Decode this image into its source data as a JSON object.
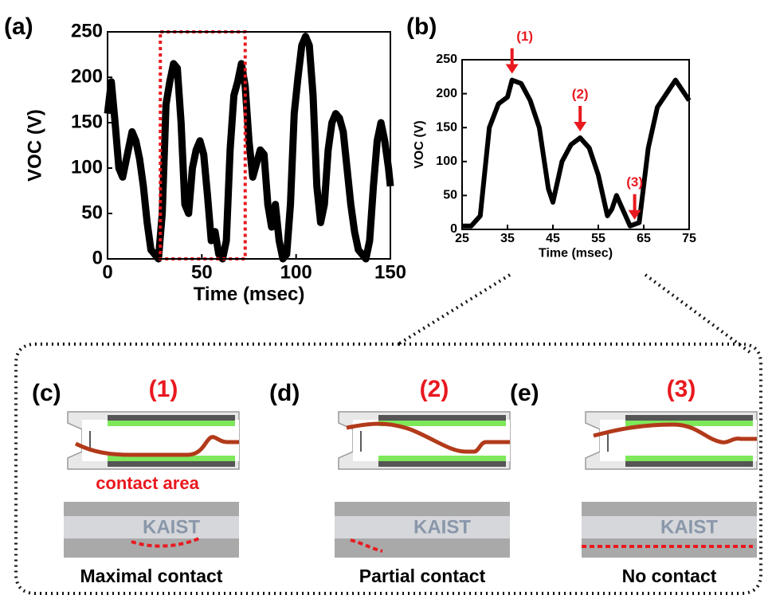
{
  "chart_data": [
    {
      "type": "line",
      "panel_label": "(a)",
      "xlabel": "Time (msec)",
      "ylabel": "VOC (V)",
      "xlim": [
        0,
        150
      ],
      "xticks": [
        0,
        50,
        100,
        150
      ],
      "ylim": [
        0,
        250
      ],
      "yticks": [
        0,
        50,
        100,
        150,
        200,
        250
      ],
      "highlight": [
        28,
        73
      ],
      "highlight_color": "#e8191f",
      "series": [
        {
          "color": "#000000",
          "x": [
            0,
            2,
            4,
            6,
            8,
            10,
            13,
            15,
            17,
            19,
            21,
            23,
            25,
            27,
            29,
            31,
            33,
            35,
            37,
            39,
            41,
            43,
            45,
            47,
            49,
            51,
            53,
            55,
            57,
            59,
            61,
            63,
            65,
            67,
            69,
            71,
            73,
            75,
            77,
            79,
            81,
            83,
            85,
            87,
            89,
            91,
            93,
            95,
            97,
            99,
            101,
            103,
            105,
            107,
            109,
            111,
            113,
            115,
            117,
            119,
            121,
            123,
            125,
            127,
            129,
            131,
            133,
            135,
            137,
            139,
            141,
            143,
            145,
            147,
            149,
            150
          ],
          "values": [
            160,
            195,
            150,
            100,
            90,
            110,
            140,
            130,
            110,
            80,
            40,
            10,
            5,
            0,
            50,
            170,
            195,
            215,
            210,
            150,
            60,
            50,
            100,
            120,
            130,
            115,
            70,
            20,
            30,
            5,
            0,
            20,
            120,
            180,
            195,
            215,
            190,
            130,
            90,
            105,
            120,
            115,
            60,
            35,
            60,
            20,
            0,
            5,
            60,
            160,
            200,
            235,
            245,
            235,
            180,
            80,
            40,
            60,
            120,
            150,
            160,
            155,
            140,
            100,
            60,
            30,
            10,
            5,
            0,
            20,
            80,
            130,
            150,
            130,
            100,
            80
          ]
        }
      ]
    },
    {
      "type": "line",
      "panel_label": "(b)",
      "xlabel": "Time (msec)",
      "ylabel": "VOC (V)",
      "xlim": [
        25,
        75
      ],
      "xticks": [
        25,
        35,
        45,
        55,
        65,
        75
      ],
      "ylim": [
        0,
        250
      ],
      "yticks": [
        0,
        50,
        100,
        150,
        200,
        250
      ],
      "annotations": [
        {
          "text": "(1)",
          "x": 36
        },
        {
          "text": "(2)",
          "x": 51
        },
        {
          "text": "(3)",
          "x": 63
        }
      ],
      "annotation_color": "#e8191f",
      "series": [
        {
          "color": "#000000",
          "x": [
            25,
            27,
            29,
            31,
            33,
            35,
            36,
            38,
            40,
            42,
            44,
            45,
            47,
            49,
            51,
            53,
            55,
            57,
            58,
            59,
            61,
            62,
            64,
            66,
            68,
            70,
            72,
            74,
            75
          ],
          "values": [
            5,
            5,
            20,
            150,
            185,
            195,
            220,
            215,
            190,
            150,
            60,
            40,
            100,
            125,
            135,
            120,
            80,
            20,
            30,
            50,
            20,
            5,
            10,
            120,
            180,
            200,
            220,
            200,
            190
          ]
        }
      ]
    }
  ],
  "panels": [
    {
      "label": "(c)",
      "state": "(1)",
      "note": "contact area",
      "photo_text": "KAIST",
      "caption": "Maximal contact"
    },
    {
      "label": "(d)",
      "state": "(2)",
      "photo_text": "KAIST",
      "caption": "Partial contact"
    },
    {
      "label": "(e)",
      "state": "(3)",
      "photo_text": "KAIST",
      "caption": "No contact"
    }
  ]
}
